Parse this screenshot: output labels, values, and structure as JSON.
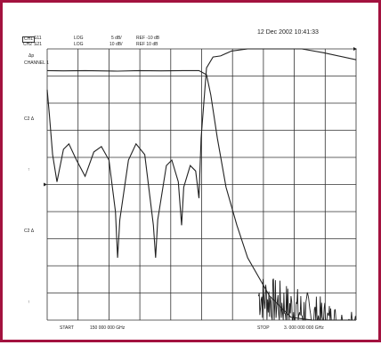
{
  "header": {
    "timestamp": "12 Dec 2002  10:41:33",
    "channels": [
      {
        "id": "CH1",
        "param": "S11",
        "format": "LOG",
        "scale": "5 dB/",
        "ref": "REF -10 dB"
      },
      {
        "id": "CH2",
        "param": "S21",
        "format": "LOG",
        "scale": "10 dB/",
        "ref": "REF 10 dB"
      }
    ],
    "marker_label": "Δp",
    "channel_label": "CHANNEL 1"
  },
  "side_markers": [
    "C2 Δ",
    "↑",
    "C2 Δ",
    "↑"
  ],
  "footer": {
    "start_label": "START",
    "start_value": "150  000  000  GHz",
    "stop_label": "STOP",
    "stop_value": "3.  000  000  000  GHz"
  },
  "colors": {
    "frame": "#a3123f",
    "grid": "#333333",
    "trace": "#222222",
    "background": "#ffffff"
  },
  "chart_data": {
    "type": "line",
    "grid": true,
    "grid_divisions": {
      "x": 10,
      "y": 10
    },
    "x": {
      "start_ghz": 0.15,
      "stop_ghz": 3.0
    },
    "series": [
      {
        "description_id": "S21",
        "points_ghz_db": [
          [
            0.15,
            -3.0
          ],
          [
            0.3,
            -3.1
          ],
          [
            0.5,
            -3.0
          ],
          [
            0.8,
            -3.2
          ],
          [
            1.0,
            -3.0
          ],
          [
            1.2,
            -3.1
          ],
          [
            1.4,
            -3.0
          ],
          [
            1.55,
            -3.0
          ],
          [
            1.62,
            -4.5
          ],
          [
            1.66,
            -12
          ],
          [
            1.72,
            -28
          ],
          [
            1.8,
            -46
          ],
          [
            1.9,
            -60
          ],
          [
            2.0,
            -72
          ],
          [
            2.2,
            -86
          ],
          [
            2.4,
            -94
          ],
          [
            2.6,
            -98
          ],
          [
            2.8,
            -100
          ],
          [
            3.0,
            -100
          ]
        ]
      },
      {
        "description_id": "S11",
        "points_ghz_db": [
          [
            0.15,
            -10.0
          ],
          [
            0.17,
            -19
          ],
          [
            0.2,
            -34
          ],
          [
            0.24,
            -44
          ],
          [
            0.3,
            -32
          ],
          [
            0.35,
            -30
          ],
          [
            0.42,
            -36
          ],
          [
            0.5,
            -42
          ],
          [
            0.58,
            -33
          ],
          [
            0.65,
            -31
          ],
          [
            0.72,
            -36
          ],
          [
            0.78,
            -55
          ],
          [
            0.8,
            -72
          ],
          [
            0.82,
            -58
          ],
          [
            0.9,
            -36
          ],
          [
            0.97,
            -30
          ],
          [
            1.05,
            -34
          ],
          [
            1.13,
            -60
          ],
          [
            1.15,
            -72
          ],
          [
            1.17,
            -58
          ],
          [
            1.25,
            -38
          ],
          [
            1.3,
            -36
          ],
          [
            1.36,
            -44
          ],
          [
            1.39,
            -60
          ],
          [
            1.41,
            -46
          ],
          [
            1.47,
            -38
          ],
          [
            1.52,
            -40
          ],
          [
            1.55,
            -50
          ],
          [
            1.57,
            -28
          ],
          [
            1.62,
            -2
          ],
          [
            1.68,
            2.0
          ],
          [
            1.75,
            2.4
          ],
          [
            1.85,
            4.2
          ],
          [
            2.0,
            6.6
          ],
          [
            2.15,
            7.8
          ],
          [
            2.3,
            7.2
          ],
          [
            2.5,
            5.2
          ],
          [
            2.7,
            3.6
          ],
          [
            3.0,
            1.0
          ]
        ]
      }
    ]
  }
}
